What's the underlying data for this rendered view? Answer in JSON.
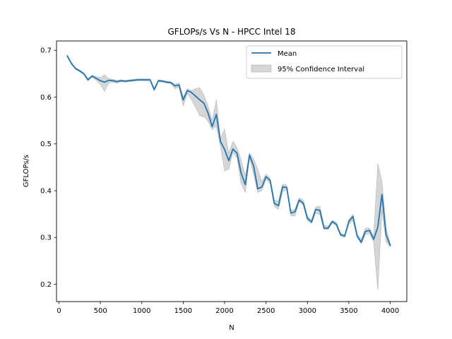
{
  "chart_data": {
    "type": "line",
    "title": "GFLOPs/s Vs N - HPCC Intel 18",
    "xlabel": "N",
    "ylabel": "GFLOPs/s",
    "xlim": [
      -30,
      4200
    ],
    "ylim": [
      0.163,
      0.72
    ],
    "xticks": [
      0,
      500,
      1000,
      1500,
      2000,
      2500,
      3000,
      3500,
      4000
    ],
    "yticks": [
      0.2,
      0.3,
      0.4,
      0.5,
      0.6,
      0.7
    ],
    "ytick_labels": [
      "0.2",
      "0.3",
      "0.4",
      "0.5",
      "0.6",
      "0.7"
    ],
    "grid": false,
    "legend_position": "top-right",
    "colors": {
      "mean": "#1f77b4",
      "ci_fill": "#bbbbbb",
      "ci_edge": "#999999"
    },
    "series": [
      {
        "name": "Mean",
        "x": [
          100,
          150,
          200,
          250,
          300,
          350,
          400,
          450,
          500,
          550,
          600,
          650,
          700,
          750,
          800,
          850,
          900,
          950,
          1000,
          1050,
          1100,
          1150,
          1200,
          1250,
          1300,
          1350,
          1400,
          1450,
          1500,
          1550,
          1600,
          1650,
          1700,
          1750,
          1800,
          1850,
          1900,
          1950,
          2000,
          2050,
          2100,
          2150,
          2200,
          2250,
          2300,
          2350,
          2400,
          2450,
          2500,
          2550,
          2600,
          2650,
          2700,
          2750,
          2800,
          2850,
          2900,
          2950,
          3000,
          3050,
          3100,
          3150,
          3200,
          3250,
          3300,
          3350,
          3400,
          3450,
          3500,
          3550,
          3600,
          3650,
          3700,
          3750,
          3800,
          3850,
          3900,
          3950,
          4000
        ],
        "y": [
          0.688,
          0.672,
          0.661,
          0.656,
          0.65,
          0.637,
          0.645,
          0.64,
          0.635,
          0.632,
          0.636,
          0.635,
          0.633,
          0.635,
          0.634,
          0.635,
          0.636,
          0.637,
          0.637,
          0.637,
          0.637,
          0.616,
          0.635,
          0.634,
          0.632,
          0.631,
          0.624,
          0.626,
          0.594,
          0.614,
          0.61,
          0.602,
          0.594,
          0.587,
          0.566,
          0.537,
          0.563,
          0.505,
          0.488,
          0.464,
          0.489,
          0.48,
          0.437,
          0.413,
          0.476,
          0.453,
          0.404,
          0.408,
          0.43,
          0.422,
          0.373,
          0.368,
          0.408,
          0.407,
          0.352,
          0.355,
          0.38,
          0.373,
          0.341,
          0.333,
          0.36,
          0.358,
          0.32,
          0.32,
          0.334,
          0.328,
          0.306,
          0.303,
          0.334,
          0.345,
          0.303,
          0.29,
          0.313,
          0.315,
          0.296,
          0.322,
          0.392,
          0.306,
          0.283
        ],
        "ci_lower": [
          0.686,
          0.67,
          0.659,
          0.654,
          0.648,
          0.634,
          0.643,
          0.636,
          0.627,
          0.612,
          0.63,
          0.632,
          0.63,
          0.633,
          0.632,
          0.633,
          0.634,
          0.635,
          0.635,
          0.635,
          0.635,
          0.613,
          0.633,
          0.632,
          0.63,
          0.629,
          0.618,
          0.621,
          0.581,
          0.608,
          0.594,
          0.578,
          0.56,
          0.558,
          0.548,
          0.53,
          0.538,
          0.495,
          0.442,
          0.446,
          0.481,
          0.471,
          0.415,
          0.396,
          0.471,
          0.435,
          0.396,
          0.4,
          0.424,
          0.415,
          0.366,
          0.36,
          0.398,
          0.402,
          0.346,
          0.346,
          0.376,
          0.369,
          0.336,
          0.33,
          0.352,
          0.349,
          0.317,
          0.317,
          0.331,
          0.324,
          0.303,
          0.3,
          0.329,
          0.336,
          0.3,
          0.286,
          0.307,
          0.308,
          0.29,
          0.188,
          0.358,
          0.29,
          0.28
        ],
        "ci_upper": [
          0.69,
          0.674,
          0.663,
          0.658,
          0.652,
          0.64,
          0.647,
          0.644,
          0.642,
          0.648,
          0.64,
          0.638,
          0.636,
          0.637,
          0.636,
          0.637,
          0.638,
          0.639,
          0.639,
          0.639,
          0.639,
          0.619,
          0.637,
          0.636,
          0.634,
          0.633,
          0.628,
          0.63,
          0.6,
          0.618,
          0.614,
          0.618,
          0.62,
          0.605,
          0.581,
          0.55,
          0.594,
          0.512,
          0.532,
          0.48,
          0.506,
          0.492,
          0.465,
          0.432,
          0.481,
          0.468,
          0.446,
          0.419,
          0.436,
          0.427,
          0.38,
          0.378,
          0.414,
          0.412,
          0.358,
          0.36,
          0.385,
          0.38,
          0.346,
          0.338,
          0.365,
          0.367,
          0.326,
          0.324,
          0.337,
          0.332,
          0.309,
          0.306,
          0.339,
          0.35,
          0.309,
          0.296,
          0.32,
          0.32,
          0.302,
          0.458,
          0.42,
          0.32,
          0.287
        ]
      }
    ],
    "legend": [
      {
        "label": "Mean",
        "kind": "line"
      },
      {
        "label": "95% Confidence Interval",
        "kind": "fill"
      }
    ]
  }
}
